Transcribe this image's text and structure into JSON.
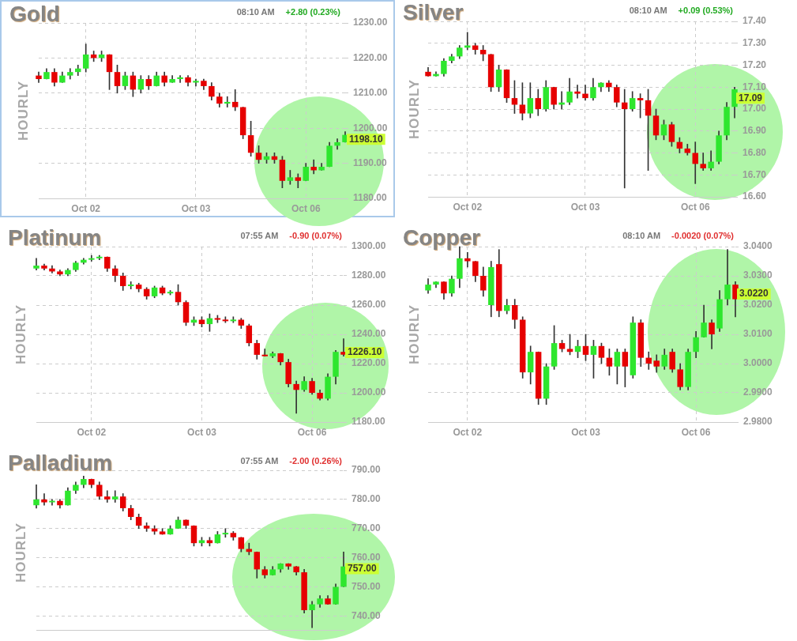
{
  "chart_data": [
    {
      "type": "candlestick",
      "title": "Gold",
      "ylabel": "HOURLY",
      "grid": true,
      "categories": [
        null,
        null,
        null,
        null,
        null,
        null,
        "Oct 02",
        null,
        null,
        null,
        null,
        null,
        null,
        null,
        null,
        null,
        null,
        null,
        null,
        null,
        "Oct 03",
        null,
        null,
        null,
        null,
        null,
        null,
        null,
        null,
        null,
        null,
        null,
        null,
        null,
        "Oct 06",
        null,
        null,
        null,
        null,
        null
      ],
      "ohlc": [
        [
          1215,
          1216,
          1213,
          1214
        ],
        [
          1214,
          1217,
          1214,
          1216
        ],
        [
          1216,
          1217,
          1212,
          1213
        ],
        [
          1213,
          1216,
          1213,
          1215
        ],
        [
          1215,
          1217,
          1214,
          1216
        ],
        [
          1216,
          1218,
          1215,
          1217
        ],
        [
          1217,
          1224,
          1216,
          1221
        ],
        [
          1221,
          1222,
          1219,
          1220
        ],
        [
          1220,
          1222,
          1219,
          1221
        ],
        [
          1221,
          1221,
          1211,
          1216
        ],
        [
          1216,
          1218,
          1210,
          1212
        ],
        [
          1212,
          1216,
          1211,
          1215
        ],
        [
          1215,
          1216,
          1209,
          1211
        ],
        [
          1211,
          1215,
          1210,
          1214
        ],
        [
          1214,
          1215,
          1211,
          1212
        ],
        [
          1212,
          1216,
          1212,
          1215
        ],
        [
          1215,
          1216,
          1212,
          1213
        ],
        [
          1213,
          1215,
          1213,
          1214
        ],
        [
          1214,
          1215,
          1213,
          1214.5
        ],
        [
          1214.5,
          1215,
          1212,
          1213
        ],
        [
          1213,
          1214,
          1212,
          1213.5
        ],
        [
          1213.5,
          1214,
          1211,
          1212
        ],
        [
          1212,
          1213,
          1208,
          1209
        ],
        [
          1209,
          1210,
          1206,
          1207
        ],
        [
          1207,
          1209,
          1206,
          1207.5
        ],
        [
          1207.5,
          1211,
          1205,
          1206
        ],
        [
          1206,
          1206,
          1197,
          1198
        ],
        [
          1198,
          1202,
          1192,
          1193
        ],
        [
          1193,
          1195,
          1190,
          1191
        ],
        [
          1191,
          1193,
          1190,
          1192
        ],
        [
          1192,
          1193,
          1190,
          1191
        ],
        [
          1191,
          1192,
          1183,
          1185
        ],
        [
          1185,
          1188,
          1184,
          1186
        ],
        [
          1186,
          1187,
          1183,
          1185
        ],
        [
          1185,
          1190,
          1185,
          1189
        ],
        [
          1189,
          1191,
          1187,
          1188
        ],
        [
          1188,
          1190,
          1188,
          1189
        ],
        [
          1189,
          1196,
          1189,
          1195
        ],
        [
          1195,
          1197,
          1194,
          1196
        ],
        [
          1196,
          1199,
          1196,
          1198.1
        ]
      ],
      "ylim": [
        1180,
        1230
      ],
      "yticks": [
        {
          "value": 1180,
          "label": "1180.00"
        },
        {
          "value": 1190,
          "label": "1190.00"
        },
        {
          "value": 1200,
          "label": "1200.00"
        },
        {
          "value": 1210,
          "label": "1210.00"
        },
        {
          "value": 1220,
          "label": "1220.00"
        },
        {
          "value": 1230,
          "label": "1230.00"
        }
      ],
      "annotations": [
        "08:10 AM",
        "+2.80 (0.23%)",
        "1198.10"
      ]
    },
    {
      "type": "candlestick",
      "title": "Silver",
      "ylabel": "HOURLY",
      "grid": true,
      "categories": [
        null,
        null,
        null,
        null,
        null,
        "Oct 02",
        null,
        null,
        null,
        null,
        null,
        null,
        null,
        null,
        null,
        null,
        null,
        null,
        null,
        null,
        "Oct 03",
        null,
        null,
        null,
        null,
        null,
        null,
        null,
        null,
        null,
        null,
        null,
        null,
        null,
        "Oct 06",
        null,
        null,
        null,
        null,
        null
      ],
      "ohlc": [
        [
          17.17,
          17.19,
          17.15,
          17.15
        ],
        [
          17.15,
          17.17,
          17.15,
          17.16
        ],
        [
          17.16,
          17.23,
          17.15,
          17.22
        ],
        [
          17.22,
          17.25,
          17.21,
          17.24
        ],
        [
          17.24,
          17.29,
          17.23,
          17.28
        ],
        [
          17.28,
          17.35,
          17.27,
          17.29
        ],
        [
          17.29,
          17.3,
          17.25,
          17.27
        ],
        [
          17.27,
          17.29,
          17.22,
          17.25
        ],
        [
          17.25,
          17.25,
          17.08,
          17.1
        ],
        [
          17.1,
          17.2,
          17.08,
          17.18
        ],
        [
          17.18,
          17.18,
          17.03,
          17.05
        ],
        [
          17.05,
          17.13,
          16.98,
          17.02
        ],
        [
          17.02,
          17.12,
          16.95,
          16.98
        ],
        [
          16.98,
          17.12,
          16.96,
          17.05
        ],
        [
          17.05,
          17.09,
          16.97,
          17
        ],
        [
          17,
          17.13,
          16.99,
          17.1
        ],
        [
          17.1,
          17.1,
          17,
          17.02
        ],
        [
          17.02,
          17.08,
          17,
          17.03
        ],
        [
          17.03,
          17.14,
          17.02,
          17.08
        ],
        [
          17.08,
          17.11,
          17.05,
          17.07
        ],
        [
          17.07,
          17.11,
          17.04,
          17.05
        ],
        [
          17.05,
          17.14,
          17.04,
          17.1
        ],
        [
          17.1,
          17.12,
          17.08,
          17.12
        ],
        [
          17.12,
          17.13,
          17.08,
          17.1
        ],
        [
          17.1,
          17.11,
          17.01,
          17.03
        ],
        [
          17.03,
          17.09,
          16.64,
          17
        ],
        [
          17,
          17.08,
          16.99,
          17.05
        ],
        [
          17.05,
          17.07,
          16.96,
          17.04
        ],
        [
          17.04,
          17.09,
          16.72,
          16.97
        ],
        [
          16.97,
          17,
          16.86,
          16.88
        ],
        [
          16.88,
          16.95,
          16.86,
          16.93
        ],
        [
          16.93,
          16.94,
          16.83,
          16.85
        ],
        [
          16.85,
          16.87,
          16.8,
          16.82
        ],
        [
          16.82,
          16.84,
          16.79,
          16.8
        ],
        [
          16.8,
          16.85,
          16.66,
          16.75
        ],
        [
          16.75,
          16.8,
          16.72,
          16.73
        ],
        [
          16.73,
          16.81,
          16.72,
          16.76
        ],
        [
          16.76,
          16.9,
          16.75,
          16.88
        ],
        [
          16.88,
          17.03,
          16.86,
          17.01
        ],
        [
          17.01,
          17.1,
          16.96,
          17.09
        ]
      ],
      "ylim": [
        16.6,
        17.4
      ],
      "yticks": [
        {
          "value": 16.6,
          "label": "16.60"
        },
        {
          "value": 16.7,
          "label": "16.70"
        },
        {
          "value": 16.8,
          "label": "16.80"
        },
        {
          "value": 16.9,
          "label": "16.90"
        },
        {
          "value": 17,
          "label": "17.00"
        },
        {
          "value": 17.1,
          "label": "17.10"
        },
        {
          "value": 17.2,
          "label": "17.20"
        },
        {
          "value": 17.3,
          "label": "17.30"
        },
        {
          "value": 17.4,
          "label": "17.40"
        }
      ],
      "annotations": [
        "08:10 AM",
        "+0.09 (0.53%)",
        "17.09"
      ]
    },
    {
      "type": "candlestick",
      "title": "Platinum",
      "ylabel": "HOURLY",
      "grid": true,
      "categories": [
        null,
        null,
        null,
        null,
        null,
        null,
        null,
        "Oct 02",
        null,
        null,
        null,
        null,
        null,
        null,
        null,
        null,
        null,
        null,
        null,
        null,
        null,
        "Oct 03",
        null,
        null,
        null,
        null,
        null,
        null,
        null,
        null,
        null,
        null,
        null,
        null,
        null,
        "Oct 06",
        null,
        null,
        null,
        null
      ],
      "ohlc": [
        [
          1285,
          1292,
          1284,
          1287
        ],
        [
          1287,
          1288,
          1284,
          1285
        ],
        [
          1285,
          1287,
          1282,
          1283
        ],
        [
          1283,
          1284,
          1280,
          1281
        ],
        [
          1281,
          1285,
          1280,
          1284
        ],
        [
          1284,
          1290,
          1283,
          1289
        ],
        [
          1289,
          1292,
          1288,
          1291
        ],
        [
          1291,
          1294,
          1290,
          1292
        ],
        [
          1292,
          1294,
          1291,
          1293
        ],
        [
          1293,
          1293,
          1283,
          1285
        ],
        [
          1285,
          1287,
          1276,
          1280
        ],
        [
          1280,
          1282,
          1270,
          1273
        ],
        [
          1273,
          1276,
          1271,
          1274
        ],
        [
          1274,
          1275,
          1269,
          1271
        ],
        [
          1271,
          1272,
          1264,
          1266
        ],
        [
          1266,
          1273,
          1265,
          1272
        ],
        [
          1272,
          1273,
          1267,
          1268
        ],
        [
          1268,
          1270,
          1267,
          1269
        ],
        [
          1269,
          1274,
          1260,
          1262
        ],
        [
          1262,
          1263,
          1246,
          1248
        ],
        [
          1248,
          1252,
          1246,
          1250
        ],
        [
          1250,
          1252,
          1245,
          1247
        ],
        [
          1247,
          1254,
          1242,
          1251
        ],
        [
          1251,
          1253,
          1248,
          1250
        ],
        [
          1250,
          1252,
          1248,
          1249
        ],
        [
          1249,
          1252,
          1248,
          1250
        ],
        [
          1250,
          1251,
          1244,
          1246
        ],
        [
          1246,
          1247,
          1232,
          1234
        ],
        [
          1234,
          1236,
          1223,
          1226
        ],
        [
          1226,
          1230,
          1225,
          1225
        ],
        [
          1225,
          1228,
          1224,
          1227
        ],
        [
          1227,
          1227,
          1219,
          1221
        ],
        [
          1221,
          1223,
          1204,
          1206
        ],
        [
          1206,
          1208,
          1186,
          1202
        ],
        [
          1202,
          1211,
          1201,
          1208
        ],
        [
          1208,
          1210,
          1199,
          1200
        ],
        [
          1200,
          1202,
          1195,
          1196
        ],
        [
          1196,
          1213,
          1195,
          1211
        ],
        [
          1211,
          1229,
          1206,
          1228
        ],
        [
          1228,
          1237,
          1225,
          1226.1
        ]
      ],
      "ylim": [
        1180,
        1300
      ],
      "yticks": [
        {
          "value": 1180,
          "label": "1180.00"
        },
        {
          "value": 1200,
          "label": "1200.00"
        },
        {
          "value": 1220,
          "label": "1220.00"
        },
        {
          "value": 1240,
          "label": "1240.00"
        },
        {
          "value": 1260,
          "label": "1260.00"
        },
        {
          "value": 1280,
          "label": "1280.00"
        },
        {
          "value": 1300,
          "label": "1300.00"
        }
      ],
      "annotations": [
        "07:55 AM",
        "-0.90 (0.07%)",
        "1226.10"
      ]
    },
    {
      "type": "candlestick",
      "title": "Copper",
      "ylabel": "HOURLY",
      "grid": true,
      "categories": [
        null,
        null,
        null,
        null,
        null,
        "Oct 02",
        null,
        null,
        null,
        null,
        null,
        null,
        null,
        null,
        null,
        null,
        null,
        null,
        null,
        null,
        "Oct 03",
        null,
        null,
        null,
        null,
        null,
        null,
        null,
        null,
        null,
        null,
        null,
        null,
        null,
        "Oct 06",
        null,
        null,
        null,
        null,
        null
      ],
      "ohlc": [
        [
          3.025,
          3.029,
          3.024,
          3.027
        ],
        [
          3.027,
          3.028,
          3.026,
          3.028
        ],
        [
          3.028,
          3.028,
          3.022,
          3.024
        ],
        [
          3.024,
          3.03,
          3.023,
          3.029
        ],
        [
          3.029,
          3.04,
          3.026,
          3.036
        ],
        [
          3.036,
          3.038,
          3.033,
          3.035
        ],
        [
          3.035,
          3.035,
          3.028,
          3.03
        ],
        [
          3.03,
          3.033,
          3.023,
          3.025
        ],
        [
          3.02,
          3.035,
          3.016,
          3.033
        ],
        [
          3.034,
          3.039,
          3.016,
          3.018
        ],
        [
          3.018,
          3.022,
          3.017,
          3.02
        ],
        [
          3.02,
          3.022,
          3.012,
          3.015
        ],
        [
          3.015,
          3.016,
          2.995,
          2.997
        ],
        [
          2.997,
          3.006,
          2.993,
          3.004
        ],
        [
          3.004,
          3.004,
          2.986,
          2.988
        ],
        [
          2.988,
          3,
          2.986,
          2.999
        ],
        [
          2.999,
          3.013,
          2.998,
          3.007
        ],
        [
          3.007,
          3.008,
          3.004,
          3.005
        ],
        [
          3.005,
          3.01,
          3.003,
          3.004
        ],
        [
          3.004,
          3.008,
          3.002,
          3.006
        ],
        [
          3.006,
          3.01,
          3.001,
          3.003
        ],
        [
          3.003,
          3.008,
          2.995,
          3.006
        ],
        [
          3.006,
          3.007,
          3,
          3.002
        ],
        [
          3.002,
          3.005,
          2.996,
          2.999
        ],
        [
          2.999,
          3.005,
          2.993,
          3.004
        ],
        [
          3.004,
          3.005,
          2.992,
          2.999
        ],
        [
          2.996,
          3.016,
          2.995,
          3.014
        ],
        [
          3.014,
          3.015,
          2.999,
          3.002
        ],
        [
          3.002,
          3.004,
          2.998,
          3
        ],
        [
          3.001,
          3.003,
          2.997,
          2.999
        ],
        [
          2.999,
          3.005,
          2.998,
          3.003
        ],
        [
          3.004,
          3.005,
          2.997,
          2.998
        ],
        [
          2.998,
          3,
          2.991,
          2.992
        ],
        [
          2.992,
          3.005,
          2.991,
          3.004
        ],
        [
          3.004,
          3.011,
          3.002,
          3.009
        ],
        [
          3.009,
          3.02,
          3.009,
          3.014
        ],
        [
          3.014,
          3.015,
          3.005,
          3.01
        ],
        [
          3.012,
          3.025,
          3.011,
          3.022
        ],
        [
          3.022,
          3.039,
          3.02,
          3.027
        ],
        [
          3.027,
          3.028,
          3.016,
          3.022
        ]
      ],
      "ylim": [
        2.98,
        3.04
      ],
      "yticks": [
        {
          "value": 2.98,
          "label": "2.9800"
        },
        {
          "value": 2.99,
          "label": "2.9900"
        },
        {
          "value": 3,
          "label": "3.0000"
        },
        {
          "value": 3.01,
          "label": "3.0100"
        },
        {
          "value": 3.02,
          "label": "3.0200"
        },
        {
          "value": 3.03,
          "label": "3.0300"
        },
        {
          "value": 3.04,
          "label": "3.0400"
        }
      ],
      "annotations": [
        "08:10 AM",
        "-0.0020 (0.07%)",
        "3.0220"
      ]
    },
    {
      "type": "candlestick",
      "title": "Palladium",
      "ylabel": "HOURLY",
      "grid": "y",
      "tick_labels": "y",
      "categories": [
        null,
        null,
        null,
        null,
        null,
        null,
        null,
        null,
        null,
        null,
        null,
        null,
        null,
        null,
        null,
        null,
        null,
        null,
        null,
        null,
        null,
        null,
        null,
        null,
        null,
        null,
        null,
        null,
        null,
        null,
        null,
        null,
        null,
        null,
        null,
        null,
        null,
        null,
        null,
        null
      ],
      "ohlc": [
        [
          778,
          785,
          777,
          780
        ],
        [
          780,
          782,
          778,
          779
        ],
        [
          779,
          780,
          778,
          779.5
        ],
        [
          779.5,
          780,
          777,
          778
        ],
        [
          778,
          784,
          778,
          783
        ],
        [
          783,
          786,
          782,
          785
        ],
        [
          785,
          788,
          784,
          787
        ],
        [
          787,
          787,
          784,
          785
        ],
        [
          785,
          786,
          780,
          781
        ],
        [
          781,
          783,
          779,
          780
        ],
        [
          780,
          783,
          779,
          781
        ],
        [
          781,
          782,
          776,
          777
        ],
        [
          777,
          778,
          773,
          774
        ],
        [
          774,
          775,
          770,
          771
        ],
        [
          771,
          772,
          769,
          770
        ],
        [
          770,
          771,
          768,
          769
        ],
        [
          769,
          770,
          768,
          768
        ],
        [
          768,
          771,
          768,
          770
        ],
        [
          770,
          774,
          770,
          773
        ],
        [
          773,
          773,
          770,
          771
        ],
        [
          771,
          771,
          764,
          765
        ],
        [
          765,
          767,
          764,
          766
        ],
        [
          766,
          767,
          764,
          765
        ],
        [
          765,
          769,
          765,
          768
        ],
        [
          768,
          770,
          767,
          768.5
        ],
        [
          768.5,
          769,
          766,
          767
        ],
        [
          767,
          767,
          762,
          763
        ],
        [
          763,
          765,
          761,
          762
        ],
        [
          762,
          762,
          753,
          756
        ],
        [
          756,
          757,
          753,
          754
        ],
        [
          754,
          757,
          754,
          756
        ],
        [
          756,
          758,
          755,
          758
        ],
        [
          758,
          758,
          756,
          757
        ],
        [
          757,
          757,
          754,
          755
        ],
        [
          755,
          756,
          741,
          742
        ],
        [
          742,
          745,
          736,
          744
        ],
        [
          744,
          747,
          743,
          746
        ],
        [
          746,
          747,
          744,
          744
        ],
        [
          744,
          751,
          744,
          750
        ],
        [
          750,
          762,
          750,
          757
        ]
      ],
      "ylim": [
        735,
        790
      ],
      "yticks": [
        {
          "value": 740,
          "label": "740.00"
        },
        {
          "value": 750,
          "label": "750.00"
        },
        {
          "value": 760,
          "label": "760.00"
        },
        {
          "value": 770,
          "label": "770.00"
        },
        {
          "value": 780,
          "label": "780.00"
        },
        {
          "value": 790,
          "label": "790.00"
        }
      ],
      "annotations": [
        "07:55 AM",
        "-2.00 (0.26%)",
        "757.00"
      ]
    }
  ]
}
